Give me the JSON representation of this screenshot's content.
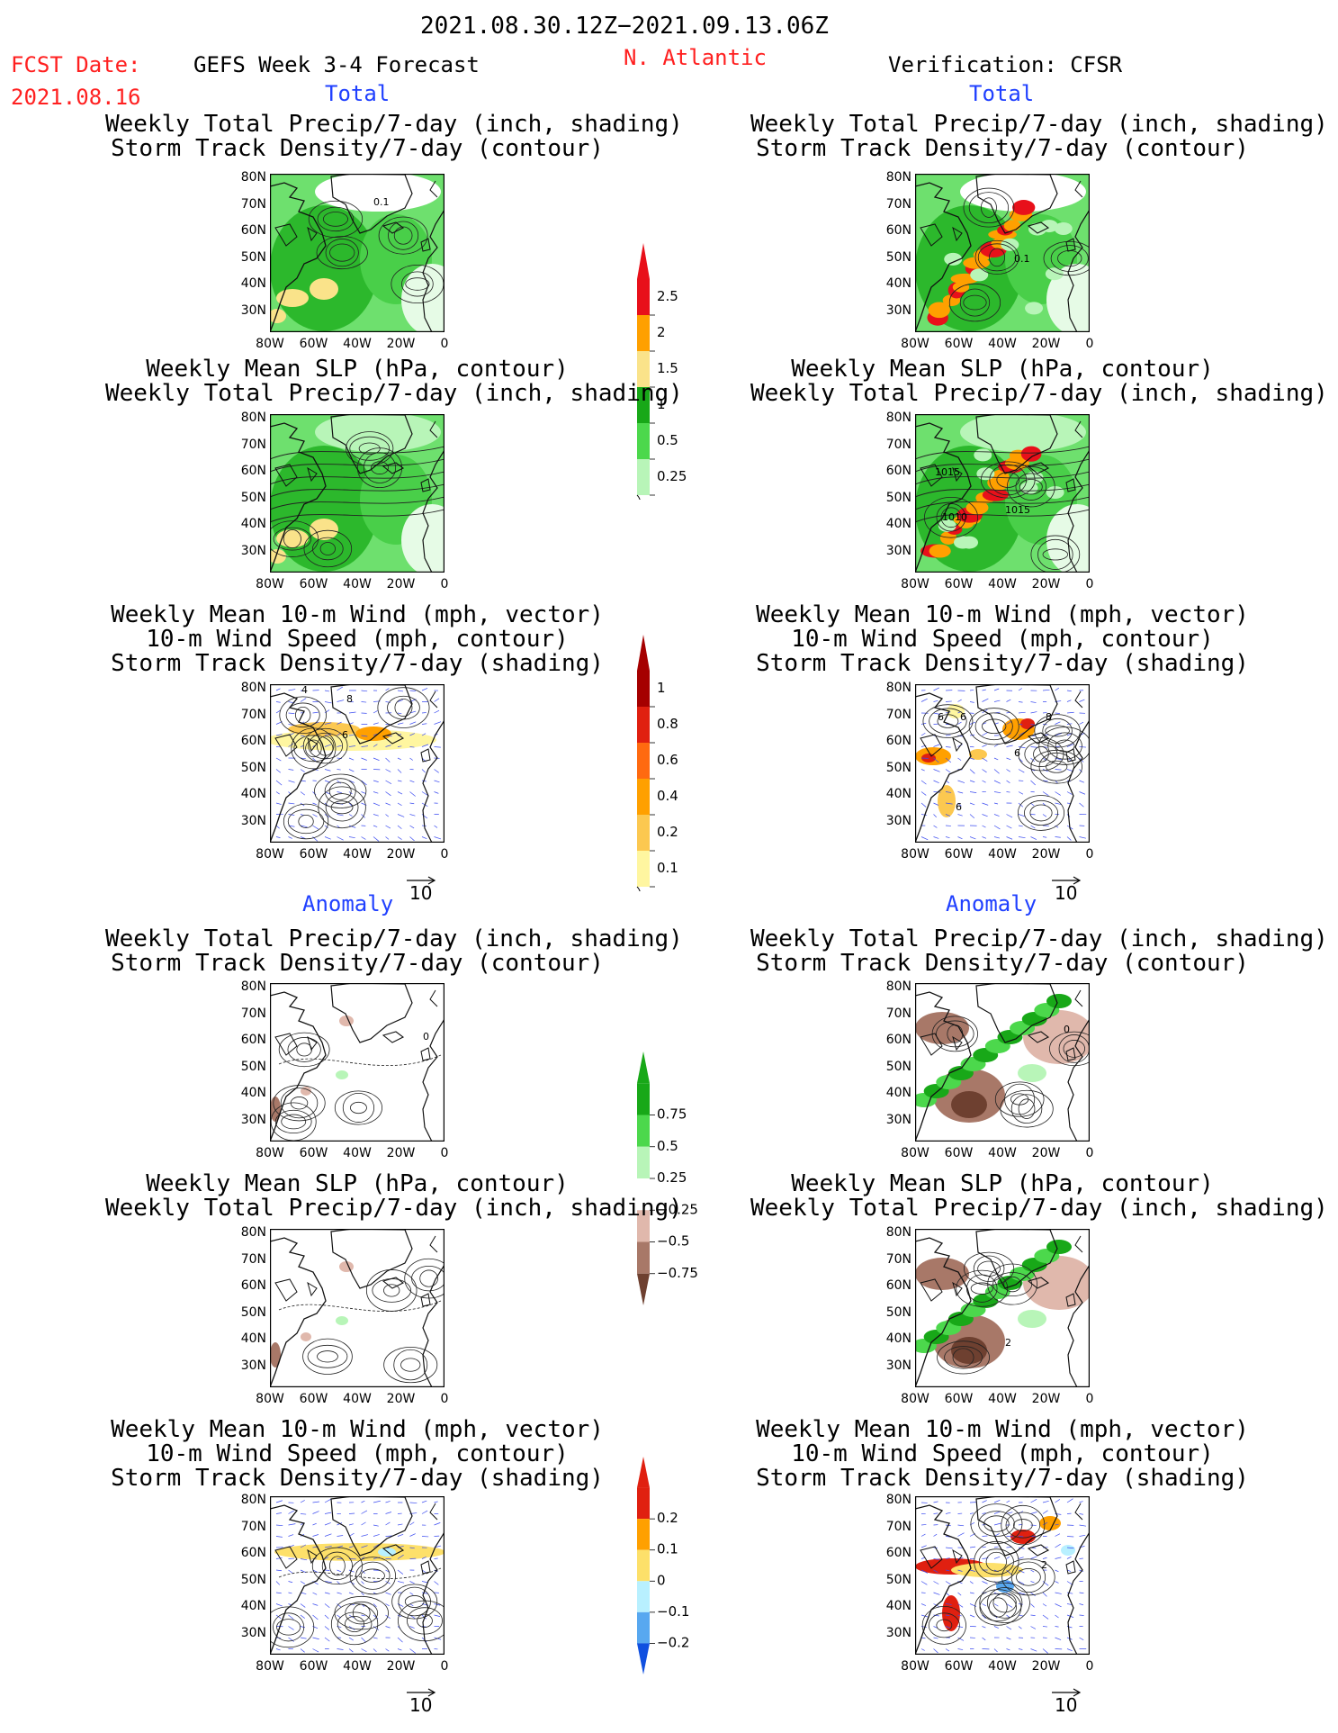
{
  "header": {
    "period": "2021.08.30.12Z−2021.09.13.06Z",
    "fcst_label": "FCST Date:",
    "fcst_date": "2021.08.16",
    "model": "GEFS Week 3-4 Forecast",
    "region": "N. Atlantic",
    "verification": "Verification: CFSR"
  },
  "sections": {
    "total": "Total",
    "anomaly": "Anomaly"
  },
  "panel_titles": {
    "precip_storm": [
      "Weekly Total Precip/7-day (inch, shading)",
      "Storm Track Density/7-day (contour)"
    ],
    "slp_precip": [
      "Weekly Mean SLP (hPa, contour)",
      "Weekly Total Precip/7-day (inch, shading)"
    ],
    "wind_storm": [
      "Weekly Mean 10-m Wind (mph, vector)",
      "10-m Wind Speed (mph, contour)",
      "Storm Track Density/7-day (shading)"
    ]
  },
  "axes": {
    "lat_ticks": [
      "80N",
      "70N",
      "60N",
      "50N",
      "40N",
      "30N"
    ],
    "lon_ticks": [
      "80W",
      "60W",
      "40W",
      "20W",
      "0"
    ]
  },
  "contour_labels": {
    "fcst_storm": "0.1",
    "cfsr_storm": "0.1",
    "cfsr_slp": [
      "1015",
      "1010",
      "1015"
    ],
    "fcst_wind": [
      "4",
      "8",
      "6"
    ],
    "cfsr_wind": [
      "6",
      "6",
      "8",
      "6",
      "6"
    ],
    "anom_fcst_storm": "0",
    "anom_cfsr_storm": "0",
    "anom_cfsr_slp": "2",
    "anom_cfsr_wind": "2"
  },
  "vector_reference": "10",
  "colorbars": {
    "precip_total": {
      "labels": [
        "2.5",
        "2",
        "1.5",
        "1",
        "0.5",
        "0.25"
      ],
      "colors": [
        "#e8101a",
        "#ffa000",
        "#fae38a",
        "#18a818",
        "#4cd84c",
        "#b8f5b8"
      ]
    },
    "storm_total": {
      "labels": [
        "1",
        "0.8",
        "0.6",
        "0.4",
        "0.2",
        "0.1"
      ],
      "colors": [
        "#a50000",
        "#e02010",
        "#ff6a10",
        "#ffa000",
        "#fcc850",
        "#fff6a0"
      ]
    },
    "precip_anom": {
      "labels": [
        "0.75",
        "0.5",
        "0.25",
        "−0.25",
        "−0.5",
        "−0.75"
      ],
      "colors": [
        "#18a818",
        "#4cd84c",
        "#b8f5b8",
        "#ffffff",
        "#e0b8ac",
        "#a87868",
        "#6e4030"
      ]
    },
    "storm_anom": {
      "labels": [
        "0.2",
        "0.1",
        "0",
        "−0.1",
        "−0.2"
      ],
      "colors": [
        "#e02010",
        "#ffa000",
        "#fde06a",
        "#b8f0ff",
        "#58a8f0",
        "#1050e0"
      ]
    }
  }
}
